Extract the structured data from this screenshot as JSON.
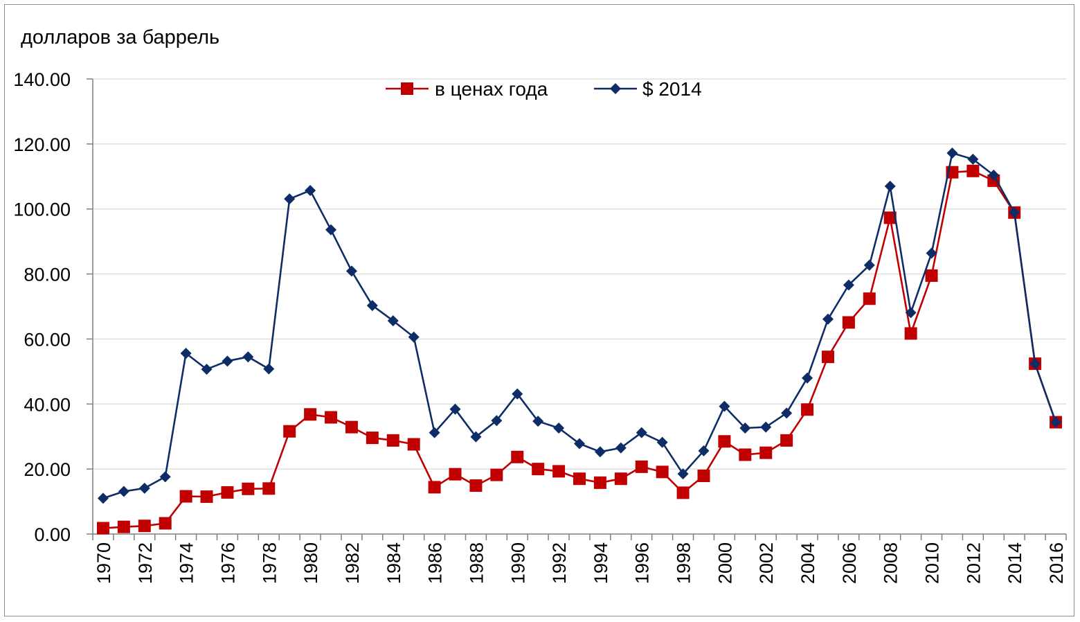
{
  "chart_data": {
    "type": "line",
    "title": "",
    "ylabel": "долларов за баррель",
    "xlabel": "",
    "ylim": [
      0,
      140
    ],
    "yticks": [
      0,
      20,
      40,
      60,
      80,
      100,
      120,
      140
    ],
    "ytick_labels": [
      "0.00",
      "20.00",
      "40.00",
      "60.00",
      "80.00",
      "100.00",
      "120.00",
      "140.00"
    ],
    "grid": true,
    "legend_position": "top-center",
    "x": [
      1970,
      1971,
      1972,
      1973,
      1974,
      1975,
      1976,
      1977,
      1978,
      1979,
      1980,
      1981,
      1982,
      1983,
      1984,
      1985,
      1986,
      1987,
      1988,
      1989,
      1990,
      1991,
      1992,
      1993,
      1994,
      1995,
      1996,
      1997,
      1998,
      1999,
      2000,
      2001,
      2002,
      2003,
      2004,
      2005,
      2006,
      2007,
      2008,
      2009,
      2010,
      2011,
      2012,
      2013,
      2014,
      2015,
      2016
    ],
    "xtick_labels": [
      "1970",
      "1972",
      "1974",
      "1976",
      "1978",
      "1980",
      "1982",
      "1984",
      "1986",
      "1988",
      "1990",
      "1992",
      "1994",
      "1996",
      "1998",
      "2000",
      "2002",
      "2004",
      "2006",
      "2008",
      "2010",
      "2012",
      "2014",
      "2016"
    ],
    "series": [
      {
        "name": "в ценах года",
        "color": "#c00000",
        "marker": "square",
        "values": [
          1.8,
          2.2,
          2.5,
          3.3,
          11.6,
          11.5,
          12.8,
          13.9,
          14.0,
          31.6,
          36.8,
          35.9,
          32.9,
          29.6,
          28.8,
          27.6,
          14.4,
          18.4,
          14.9,
          18.2,
          23.7,
          20.0,
          19.3,
          17.0,
          15.8,
          17.0,
          20.7,
          19.1,
          12.7,
          17.9,
          28.5,
          24.4,
          25.0,
          28.8,
          38.3,
          54.5,
          65.1,
          72.4,
          97.3,
          61.7,
          79.5,
          111.3,
          111.7,
          108.7,
          98.9,
          52.4,
          34.4
        ]
      },
      {
        "name": "$ 2014",
        "color": "#0e2c66",
        "marker": "diamond",
        "values": [
          11.0,
          13.1,
          14.1,
          17.6,
          55.6,
          50.7,
          53.2,
          54.5,
          50.8,
          103.1,
          105.7,
          93.6,
          80.9,
          70.3,
          65.6,
          60.6,
          31.2,
          38.4,
          29.9,
          34.9,
          43.1,
          34.7,
          32.6,
          27.8,
          25.3,
          26.5,
          31.2,
          28.2,
          18.5,
          25.6,
          39.3,
          32.6,
          32.9,
          37.2,
          48.0,
          66.1,
          76.6,
          82.7,
          107.0,
          68.1,
          86.4,
          117.2,
          115.3,
          110.4,
          98.9,
          52.4,
          34.4
        ]
      }
    ]
  }
}
